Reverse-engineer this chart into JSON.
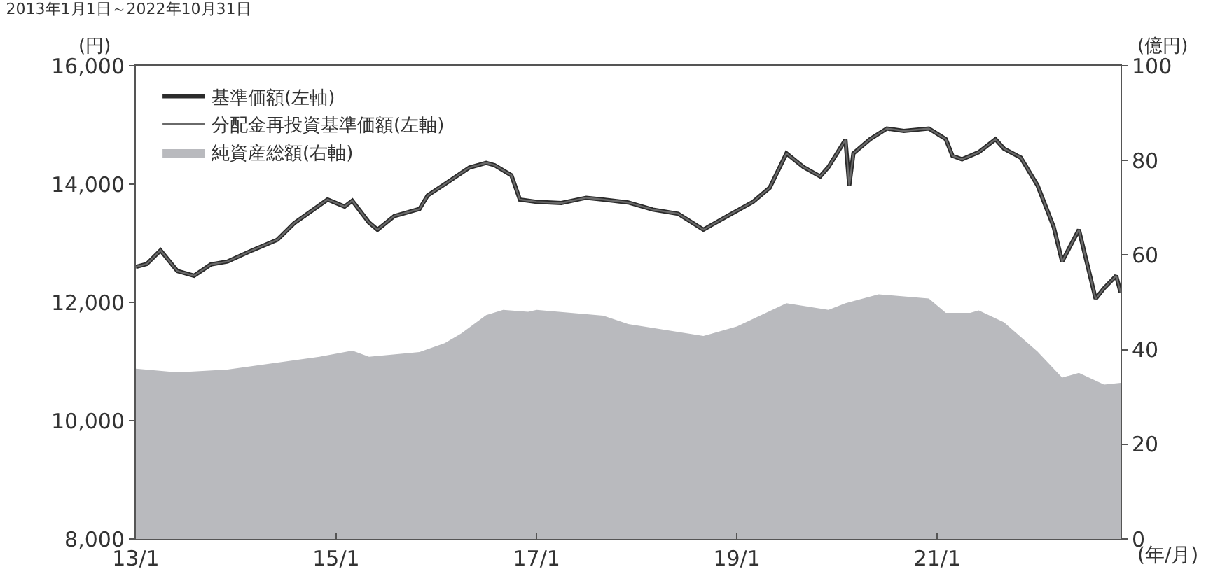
{
  "chart_data": {
    "type": "line",
    "title": "2013年1月1日～2022年10月31日",
    "ylabel": "(円)",
    "y2label": "(億円)",
    "xlabel": "(年/月)",
    "xlim": [
      "2013-01-01",
      "2022-10-31"
    ],
    "xticks": [
      {
        "value": "2013-01-01",
        "label": "13/1"
      },
      {
        "value": "2015-01-01",
        "label": "15/1"
      },
      {
        "value": "2017-01-01",
        "label": "17/1"
      },
      {
        "value": "2019-01-01",
        "label": "19/1"
      },
      {
        "value": "2021-01-01",
        "label": "21/1"
      }
    ],
    "ylim": [
      8000,
      16000
    ],
    "yticks": [
      {
        "value": 8000,
        "label": "8,000"
      },
      {
        "value": 10000,
        "label": "10,000"
      },
      {
        "value": 12000,
        "label": "12,000"
      },
      {
        "value": 14000,
        "label": "14,000"
      },
      {
        "value": 16000,
        "label": "16,000"
      }
    ],
    "y2lim": [
      0,
      100
    ],
    "y2ticks": [
      0,
      20,
      40,
      60,
      80,
      100
    ],
    "legend": "top left",
    "series": [
      {
        "name": "基準価額(左軸)",
        "color": "#2b2b2b",
        "x": [
          "2013-01-01",
          "2013-02-10",
          "2013-04",
          "2013-06",
          "2013-08",
          "2013-10",
          "2013-12",
          "2014-03",
          "2014-06",
          "2014-08",
          "2014-12",
          "2015-02",
          "2015-03",
          "2015-05",
          "2015-06",
          "2015-08",
          "2015-11",
          "2015-12",
          "2016-02",
          "2016-05",
          "2016-07",
          "2016-08",
          "2016-10",
          "2016-11",
          "2017-01",
          "2017-04",
          "2017-07",
          "2017-09",
          "2017-12",
          "2018-03",
          "2018-06",
          "2018-09",
          "2018-12",
          "2019-03",
          "2019-05",
          "2019-07",
          "2019-09",
          "2019-11",
          "2019-12",
          "2020-02-01",
          "2020-02-15",
          "2020-03",
          "2020-05",
          "2020-07",
          "2020-09",
          "2020-12",
          "2021-02",
          "2021-02-25",
          "2021-04",
          "2021-06",
          "2021-08",
          "2021-09",
          "2021-11",
          "2022-01",
          "2022-03",
          "2022-04",
          "2022-06",
          "2022-08",
          "2022-09",
          "2022-10-15",
          "2022-10-31"
        ],
        "values": [
          12600,
          12650,
          12880,
          12530,
          12450,
          12640,
          12690,
          12880,
          13060,
          13340,
          13740,
          13620,
          13720,
          13350,
          13230,
          13460,
          13580,
          13810,
          14000,
          14280,
          14360,
          14320,
          14150,
          13740,
          13700,
          13680,
          13770,
          13740,
          13690,
          13570,
          13500,
          13230,
          13470,
          13700,
          13940,
          14520,
          14290,
          14130,
          14290,
          14750,
          13980,
          14520,
          14760,
          14940,
          14900,
          14940,
          14760,
          14480,
          14420,
          14540,
          14760,
          14600,
          14450,
          13980,
          13280,
          12690,
          13230,
          12060,
          12240,
          12450,
          12170
        ]
      },
      {
        "name": "分配金再投資基準価額(左軸)",
        "color": "#6a6a6a",
        "x": [
          "2013-01-01",
          "2013-02-10",
          "2013-04",
          "2013-06",
          "2013-08",
          "2013-10",
          "2013-12",
          "2014-03",
          "2014-06",
          "2014-08",
          "2014-12",
          "2015-02",
          "2015-03",
          "2015-05",
          "2015-06",
          "2015-08",
          "2015-11",
          "2015-12",
          "2016-02",
          "2016-05",
          "2016-07",
          "2016-08",
          "2016-10",
          "2016-11",
          "2017-01",
          "2017-04",
          "2017-07",
          "2017-09",
          "2017-12",
          "2018-03",
          "2018-06",
          "2018-09",
          "2018-12",
          "2019-03",
          "2019-05",
          "2019-07",
          "2019-09",
          "2019-11",
          "2019-12",
          "2020-02-01",
          "2020-02-15",
          "2020-03",
          "2020-05",
          "2020-07",
          "2020-09",
          "2020-12",
          "2021-02",
          "2021-02-25",
          "2021-04",
          "2021-06",
          "2021-08",
          "2021-09",
          "2021-11",
          "2022-01",
          "2022-03",
          "2022-04",
          "2022-06",
          "2022-08",
          "2022-09",
          "2022-10-15",
          "2022-10-31"
        ],
        "values": [
          12600,
          12650,
          12880,
          12530,
          12450,
          12640,
          12690,
          12880,
          13060,
          13340,
          13740,
          13620,
          13720,
          13350,
          13230,
          13460,
          13580,
          13810,
          14000,
          14280,
          14360,
          14320,
          14150,
          13740,
          13700,
          13680,
          13770,
          13740,
          13690,
          13570,
          13500,
          13230,
          13470,
          13700,
          13940,
          14520,
          14290,
          14130,
          14290,
          14750,
          13980,
          14520,
          14760,
          14940,
          14900,
          14940,
          14760,
          14480,
          14420,
          14540,
          14760,
          14600,
          14450,
          13980,
          13280,
          12690,
          13230,
          12060,
          12240,
          12450,
          12170
        ]
      },
      {
        "name": "純資産総額(右軸)",
        "type": "area",
        "axis": "y2",
        "color": "#b9babe",
        "x": [
          "2013-01-01",
          "2013-06",
          "2013-12",
          "2014-11",
          "2015-03",
          "2015-05",
          "2015-11",
          "2016-02",
          "2016-04",
          "2016-07",
          "2016-09",
          "2016-12",
          "2017-01",
          "2017-09",
          "2017-12",
          "2018-09",
          "2019-01",
          "2019-07",
          "2019-12",
          "2020-02",
          "2020-06",
          "2020-12",
          "2021-02",
          "2021-05",
          "2021-06",
          "2021-09",
          "2022-01",
          "2022-04",
          "2022-06",
          "2022-09",
          "2022-10-31"
        ],
        "values": [
          36,
          35.2,
          35.8,
          38.5,
          39.8,
          38.5,
          39.5,
          41.4,
          43.4,
          47.3,
          48.4,
          48,
          48.4,
          47.2,
          45.4,
          42.9,
          44.9,
          49.8,
          48.4,
          49.8,
          51.7,
          50.8,
          47.8,
          47.8,
          48.3,
          45.8,
          39.6,
          34.1,
          35.1,
          32.6,
          33
        ]
      }
    ]
  }
}
